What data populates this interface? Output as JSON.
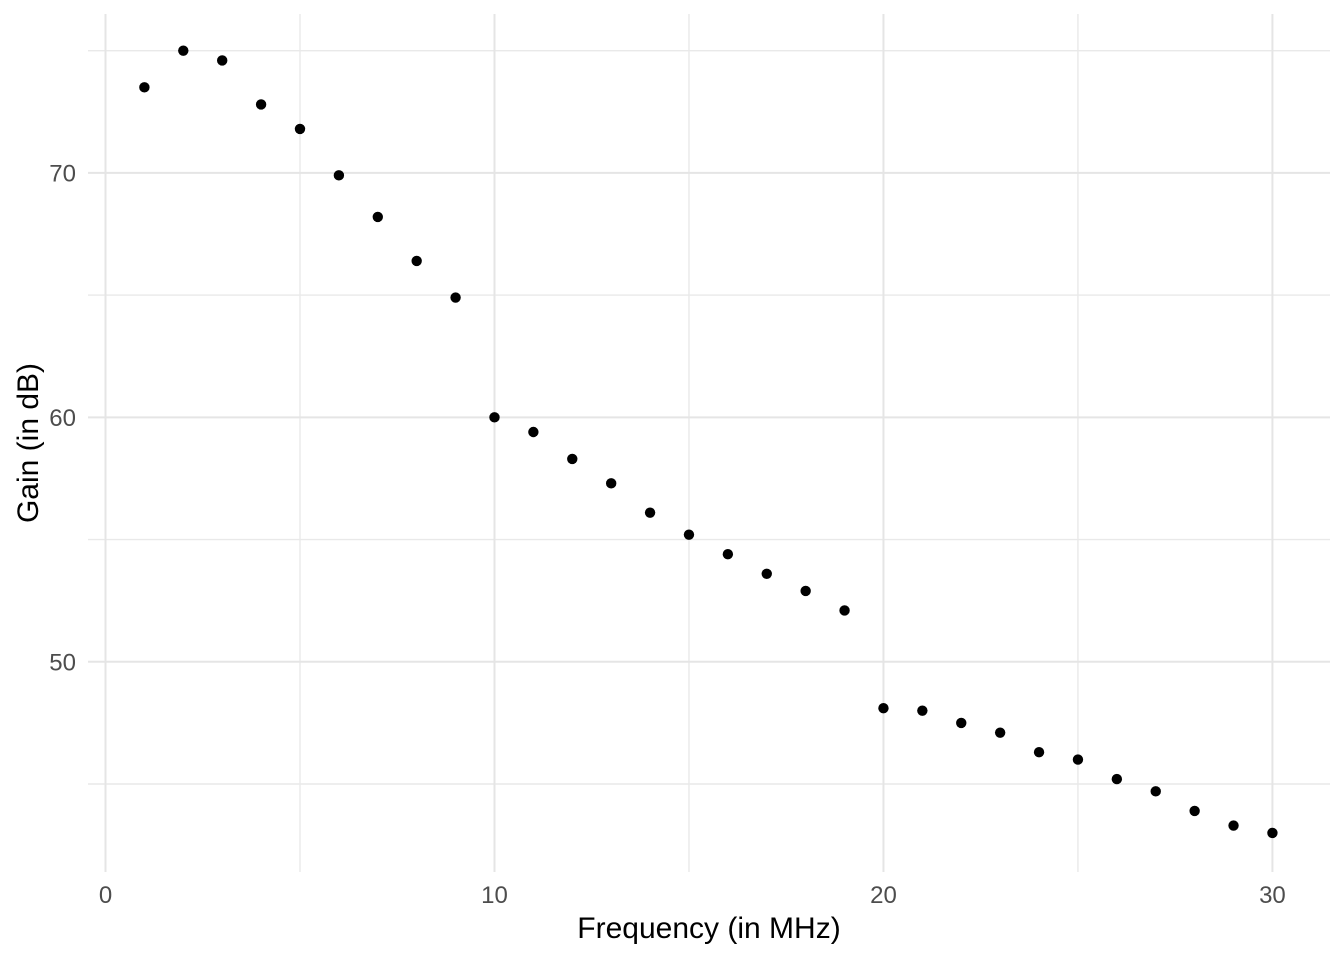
{
  "figure": {
    "background_color": "#FFFFFF"
  },
  "chart_data": {
    "type": "scatter",
    "title": "",
    "xlabel": "Frequency (in MHz)",
    "ylabel": "Gain (in dB)",
    "x": [
      1,
      2,
      3,
      4,
      5,
      6,
      7,
      8,
      9,
      10,
      11,
      12,
      13,
      14,
      15,
      16,
      17,
      18,
      19,
      20,
      21,
      22,
      23,
      24,
      25,
      26,
      27,
      28,
      29,
      30
    ],
    "y": [
      73.5,
      75.0,
      74.6,
      72.8,
      71.8,
      69.9,
      68.2,
      66.4,
      64.9,
      60.0,
      59.4,
      58.3,
      57.3,
      56.1,
      55.2,
      54.4,
      53.6,
      52.9,
      52.1,
      48.1,
      48.0,
      47.5,
      47.1,
      46.3,
      46.0,
      45.2,
      44.7,
      43.9,
      43.3,
      43.0
    ],
    "xlim": [
      -0.45,
      31.48
    ],
    "ylim": [
      41.4,
      76.5
    ],
    "x_major_ticks": [
      0,
      10,
      20,
      30
    ],
    "x_minor_ticks": [
      5,
      15,
      25
    ],
    "y_major_ticks": [
      50,
      60,
      70
    ],
    "y_minor_ticks": [
      45,
      55,
      65,
      75
    ],
    "x_tick_labels": [
      "0",
      "10",
      "20",
      "30"
    ],
    "y_tick_labels": [
      "50",
      "60",
      "70"
    ],
    "grid": true,
    "legend": "none",
    "point_color": "#000000",
    "point_radius_px": 5.2,
    "grid_major_color": "#E5E5E5",
    "grid_minor_color": "#E9E9E9",
    "tick_label_color": "#4D4D4D",
    "axis_title_color": "#000000"
  }
}
